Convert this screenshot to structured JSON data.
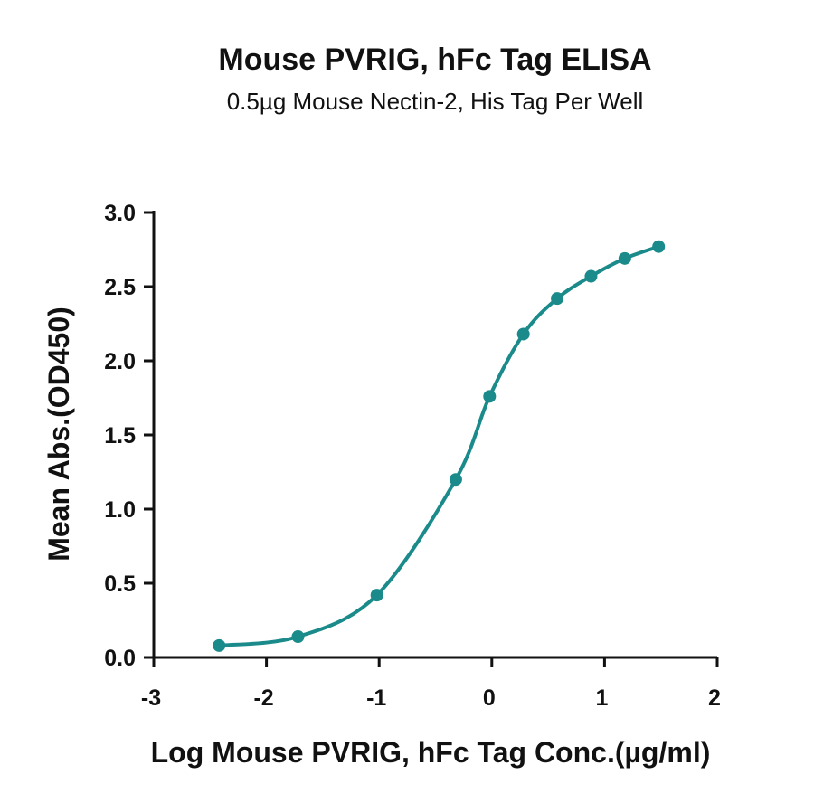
{
  "chart_data": {
    "type": "line",
    "title": "Mouse PVRIG, hFc Tag ELISA",
    "subtitle": "0.5µg Mouse Nectin-2, His Tag Per Well",
    "xlabel": "Log Mouse PVRIG, hFc Tag Conc.(µg/ml)",
    "ylabel": "Mean Abs.(OD450)",
    "xlim": [
      -3,
      2
    ],
    "ylim": [
      0,
      3
    ],
    "x_ticks": [
      -3,
      -2,
      -1,
      0,
      1,
      2
    ],
    "x_tick_labels": [
      "-3",
      "-2",
      "-1",
      "0",
      "1",
      "2"
    ],
    "y_ticks": [
      0,
      0.5,
      1,
      1.5,
      2,
      2.5,
      3
    ],
    "y_tick_labels": [
      "0.0",
      "0.5",
      "1.0",
      "1.5",
      "2.0",
      "2.5",
      "3.0"
    ],
    "grid": false,
    "color": "#1a8a8a",
    "series": [
      {
        "x": [
          -2.42,
          -1.72,
          -1.02,
          -0.32,
          -0.02,
          0.28,
          0.58,
          0.88,
          1.18,
          1.48
        ],
        "y": [
          0.08,
          0.14,
          0.42,
          1.2,
          1.76,
          2.18,
          2.42,
          2.57,
          2.69,
          2.77
        ]
      }
    ]
  }
}
